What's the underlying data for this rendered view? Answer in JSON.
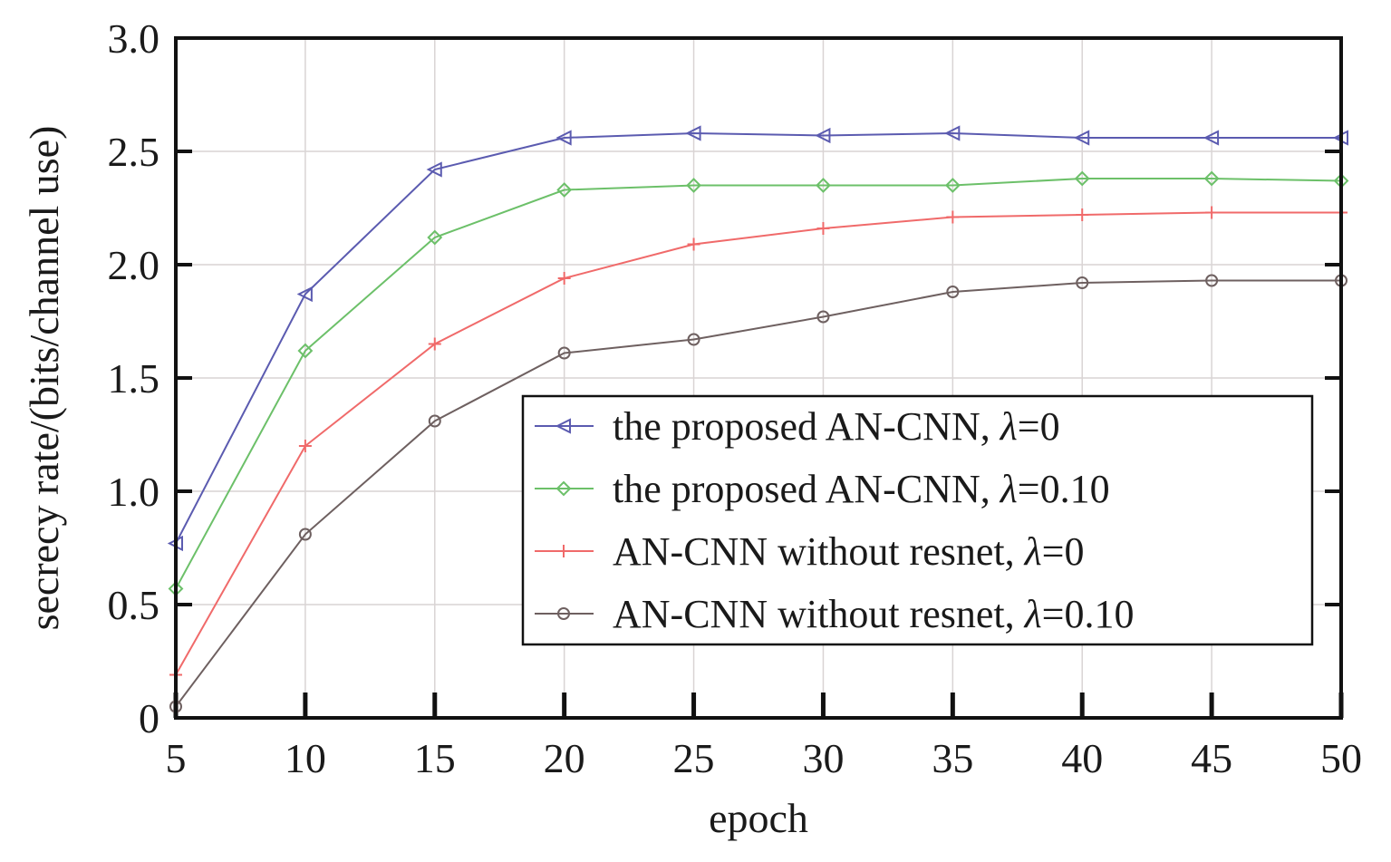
{
  "chart_data": {
    "type": "line",
    "xlabel": "epoch",
    "ylabel": "secrecy rate/(bits/channel use)",
    "x": [
      5,
      10,
      15,
      20,
      25,
      30,
      35,
      40,
      45,
      50
    ],
    "xlim": [
      5,
      50
    ],
    "ylim": [
      0,
      3.0
    ],
    "xticks": [
      "5",
      "10",
      "15",
      "20",
      "25",
      "30",
      "35",
      "40",
      "45",
      "50"
    ],
    "yticks": [
      "0",
      "0.5",
      "1.0",
      "1.5",
      "2.0",
      "2.5",
      "3.0"
    ],
    "grid": true,
    "legend_position": "center-right",
    "series": [
      {
        "name_prefix": "the proposed AN-CNN, ",
        "name_symbol": "λ",
        "name_suffix": "=0",
        "color": "#5b5bb0",
        "marker": "triangle-left",
        "values": [
          0.77,
          1.87,
          2.42,
          2.56,
          2.58,
          2.57,
          2.58,
          2.56,
          2.56,
          2.56
        ]
      },
      {
        "name_prefix": "the proposed AN-CNN, ",
        "name_symbol": "λ",
        "name_suffix": "=0.10",
        "color": "#6cc069",
        "marker": "diamond",
        "values": [
          0.57,
          1.62,
          2.12,
          2.33,
          2.35,
          2.35,
          2.35,
          2.38,
          2.38,
          2.37
        ]
      },
      {
        "name_prefix": "AN-CNN without resnet, ",
        "name_symbol": "λ",
        "name_suffix": "=0",
        "color": "#f06a6a",
        "marker": "plus",
        "values": [
          0.19,
          1.2,
          1.65,
          1.94,
          2.09,
          2.16,
          2.21,
          2.22,
          2.23,
          2.23
        ]
      },
      {
        "name_prefix": "AN-CNN without resnet, ",
        "name_symbol": "λ",
        "name_suffix": "=0.10",
        "color": "#6e6060",
        "marker": "circle",
        "values": [
          0.05,
          0.81,
          1.31,
          1.61,
          1.67,
          1.77,
          1.88,
          1.92,
          1.93,
          1.93
        ]
      }
    ]
  }
}
